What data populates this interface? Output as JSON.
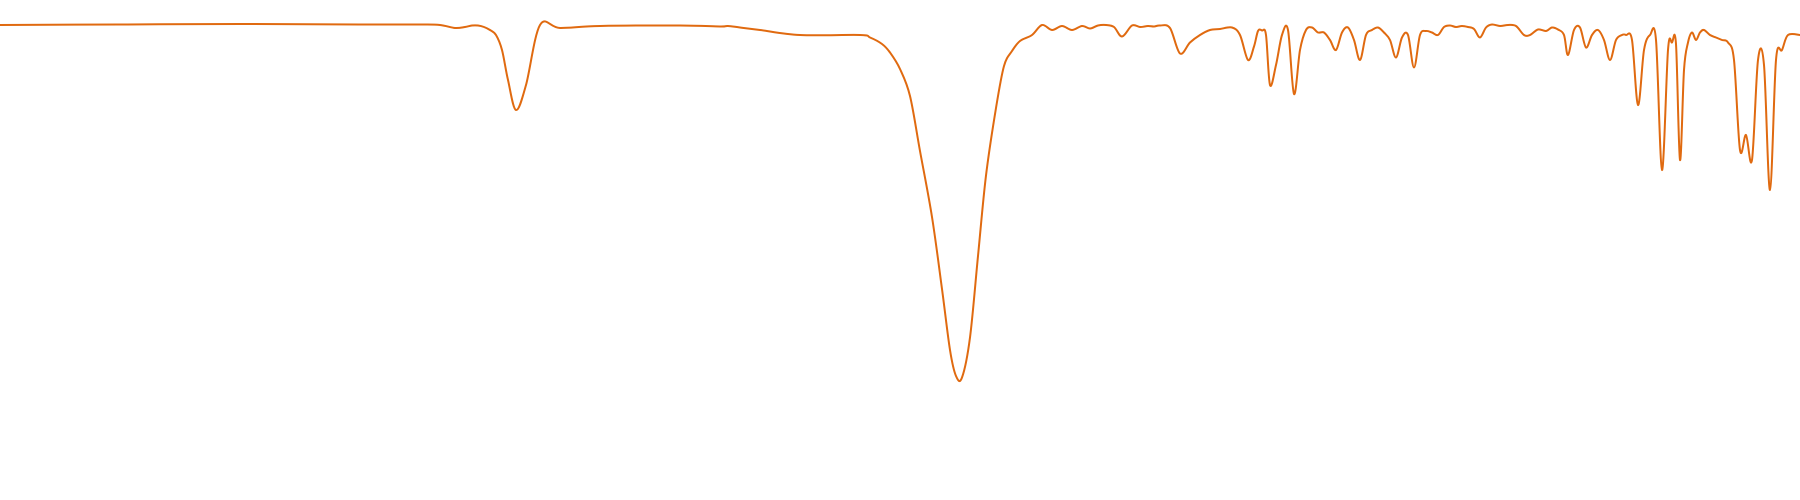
{
  "chart_data": {
    "type": "line",
    "title": "",
    "xlabel": "",
    "ylabel": "",
    "axes_visible": false,
    "grid": false,
    "legend": "none",
    "xlim": [
      0,
      1800
    ],
    "ylim": [
      0,
      1
    ],
    "colors": {
      "line": "#e06a10",
      "background": "#ffffff"
    },
    "series": [
      {
        "x": [
          0,
          120,
          240,
          360,
          420,
          440,
          455,
          465,
          472,
          478,
          484,
          490,
          496,
          502,
          508,
          516,
          526,
          540,
          560,
          600,
          680,
          720,
          728,
          740,
          760,
          800,
          860,
          870,
          882,
          890,
          900,
          910,
          920,
          932,
          942,
          950,
          956,
          962,
          970,
          978,
          986,
          996,
          1004,
          1012,
          1020,
          1032,
          1042,
          1052,
          1062,
          1072,
          1082,
          1090,
          1098,
          1106,
          1114,
          1122,
          1132,
          1140,
          1148,
          1154,
          1160,
          1170,
          1180,
          1190,
          1200,
          1210,
          1220,
          1232,
          1240,
          1248,
          1254,
          1258,
          1262,
          1266,
          1270,
          1276,
          1282,
          1288,
          1294,
          1300,
          1306,
          1312,
          1318,
          1324,
          1330,
          1336,
          1342,
          1348,
          1354,
          1360,
          1366,
          1372,
          1378,
          1384,
          1390,
          1396,
          1402,
          1408,
          1414,
          1420,
          1426,
          1432,
          1438,
          1444,
          1450,
          1456,
          1462,
          1468,
          1474,
          1480,
          1486,
          1492,
          1500,
          1508,
          1516,
          1524,
          1530,
          1538,
          1546,
          1552,
          1558,
          1564,
          1568,
          1574,
          1580,
          1586,
          1592,
          1598,
          1604,
          1610,
          1616,
          1622,
          1626,
          1632,
          1638,
          1644,
          1650,
          1656,
          1662,
          1668,
          1672,
          1676,
          1680,
          1684,
          1688,
          1692,
          1696,
          1700,
          1704,
          1710,
          1716,
          1722,
          1728,
          1734,
          1740,
          1746,
          1752,
          1758,
          1764,
          1770,
          1776,
          1782,
          1788,
          1800
        ],
        "y": [
          0.95,
          0.951,
          0.952,
          0.951,
          0.951,
          0.95,
          0.944,
          0.946,
          0.949,
          0.949,
          0.946,
          0.94,
          0.93,
          0.9,
          0.84,
          0.78,
          0.83,
          0.95,
          0.944,
          0.948,
          0.949,
          0.947,
          0.948,
          0.945,
          0.94,
          0.93,
          0.93,
          0.925,
          0.912,
          0.895,
          0.862,
          0.808,
          0.698,
          0.566,
          0.422,
          0.3,
          0.248,
          0.245,
          0.325,
          0.488,
          0.649,
          0.784,
          0.868,
          0.898,
          0.918,
          0.93,
          0.95,
          0.94,
          0.948,
          0.94,
          0.948,
          0.943,
          0.949,
          0.95,
          0.946,
          0.927,
          0.949,
          0.946,
          0.948,
          0.947,
          0.949,
          0.944,
          0.893,
          0.915,
          0.93,
          0.94,
          0.942,
          0.945,
          0.93,
          0.88,
          0.907,
          0.938,
          0.939,
          0.93,
          0.83,
          0.87,
          0.93,
          0.94,
          0.812,
          0.9,
          0.94,
          0.945,
          0.935,
          0.935,
          0.92,
          0.9,
          0.935,
          0.945,
          0.92,
          0.88,
          0.93,
          0.94,
          0.945,
          0.935,
          0.92,
          0.885,
          0.925,
          0.93,
          0.865,
          0.93,
          0.938,
          0.935,
          0.93,
          0.946,
          0.949,
          0.946,
          0.948,
          0.946,
          0.942,
          0.925,
          0.945,
          0.951,
          0.948,
          0.95,
          0.948,
          0.93,
          0.93,
          0.941,
          0.938,
          0.945,
          0.941,
          0.93,
          0.89,
          0.94,
          0.945,
          0.905,
          0.93,
          0.94,
          0.92,
          0.88,
          0.92,
          0.93,
          0.93,
          0.92,
          0.79,
          0.9,
          0.93,
          0.92,
          0.66,
          0.9,
          0.915,
          0.912,
          0.68,
          0.86,
          0.915,
          0.935,
          0.92,
          0.935,
          0.94,
          0.93,
          0.925,
          0.92,
          0.915,
          0.88,
          0.7,
          0.73,
          0.68,
          0.88,
          0.87,
          0.62,
          0.88,
          0.9,
          0.93,
          0.93
        ]
      }
    ]
  }
}
